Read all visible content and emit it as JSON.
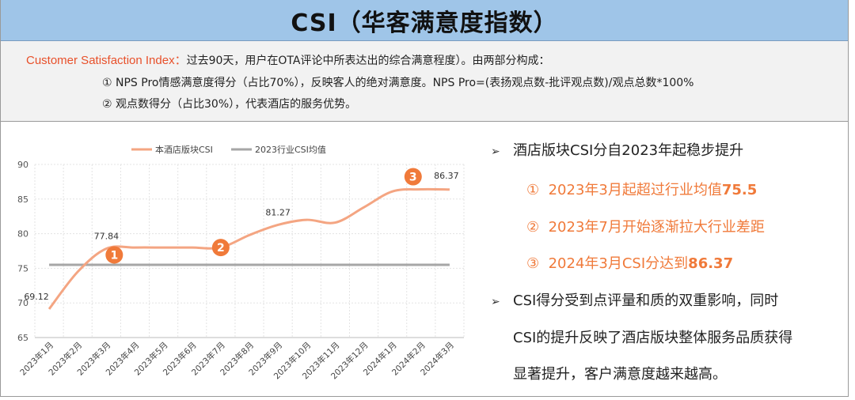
{
  "header": {
    "title": "CSI（华客满意度指数）"
  },
  "intro": {
    "key_label": "Customer Satisfaction Index：",
    "line1_rest": "过去90天，用户在OTA评论中所表达出的综合满意程度）。由两部分构成：",
    "line2": "① NPS Pro情感满意度得分（占比70%），反映客人的绝对满意度。NPS Pro=(表扬观点数-批评观点数)/观点总数*100%",
    "line3": "② 观点数得分（占比30%），代表酒店的服务优势。"
  },
  "chart_data": {
    "type": "line",
    "categories": [
      "2023年1月",
      "2023年2月",
      "2023年3月",
      "2023年4月",
      "2023年5月",
      "2023年6月",
      "2023年7月",
      "2023年8月",
      "2023年9月",
      "2023年10月",
      "2023年11月",
      "2023年12月",
      "2024年1月",
      "2024年2月",
      "2024年3月"
    ],
    "series": [
      {
        "name": "本酒店版块CSI",
        "color": "#f4a582",
        "values": [
          69.12,
          74.5,
          77.84,
          78.0,
          78.0,
          78.0,
          78.0,
          79.8,
          81.27,
          82.0,
          81.6,
          83.8,
          86.1,
          86.4,
          86.37
        ]
      },
      {
        "name": "2023行业CSI均值",
        "color": "#a6a6a6",
        "values": [
          75.5,
          75.5,
          75.5,
          75.5,
          75.5,
          75.5,
          75.5,
          75.5,
          75.5,
          75.5,
          75.5,
          75.5,
          75.5,
          75.5,
          75.5
        ]
      }
    ],
    "data_labels": [
      {
        "index": 0,
        "text": "69.12"
      },
      {
        "index": 2,
        "text": "77.84"
      },
      {
        "index": 8,
        "text": "81.27"
      },
      {
        "index": 14,
        "text": "86.37"
      }
    ],
    "markers": [
      {
        "index": 2,
        "text": "1"
      },
      {
        "index": 6,
        "text": "2"
      },
      {
        "index": 13,
        "text": "3"
      }
    ],
    "marker_color": "#f07a3a",
    "ylim": [
      65,
      90
    ],
    "yticks": [
      65,
      70,
      75,
      80,
      85,
      90
    ],
    "grid": true,
    "legend": "top"
  },
  "notes": {
    "b1": "酒店版块CSI分自2023年起稳步提升",
    "s1_num": "①",
    "s1_text": "2023年3月起超过行业均值",
    "s1_val": "75.5",
    "s2_num": "②",
    "s2_text": "2023年7月开始逐渐拉大行业差距",
    "s3_num": "③",
    "s3_text": "2024年3月CSI分达到",
    "s3_val": "86.37",
    "b2_l1": "CSI得分受到点评量和质的双重影响，同时",
    "b2_l2": "CSI的提升反映了酒店版块整体服务品质获得",
    "b2_l3": "显著提升，客户满意度越来越高。",
    "arrow": "➢"
  }
}
